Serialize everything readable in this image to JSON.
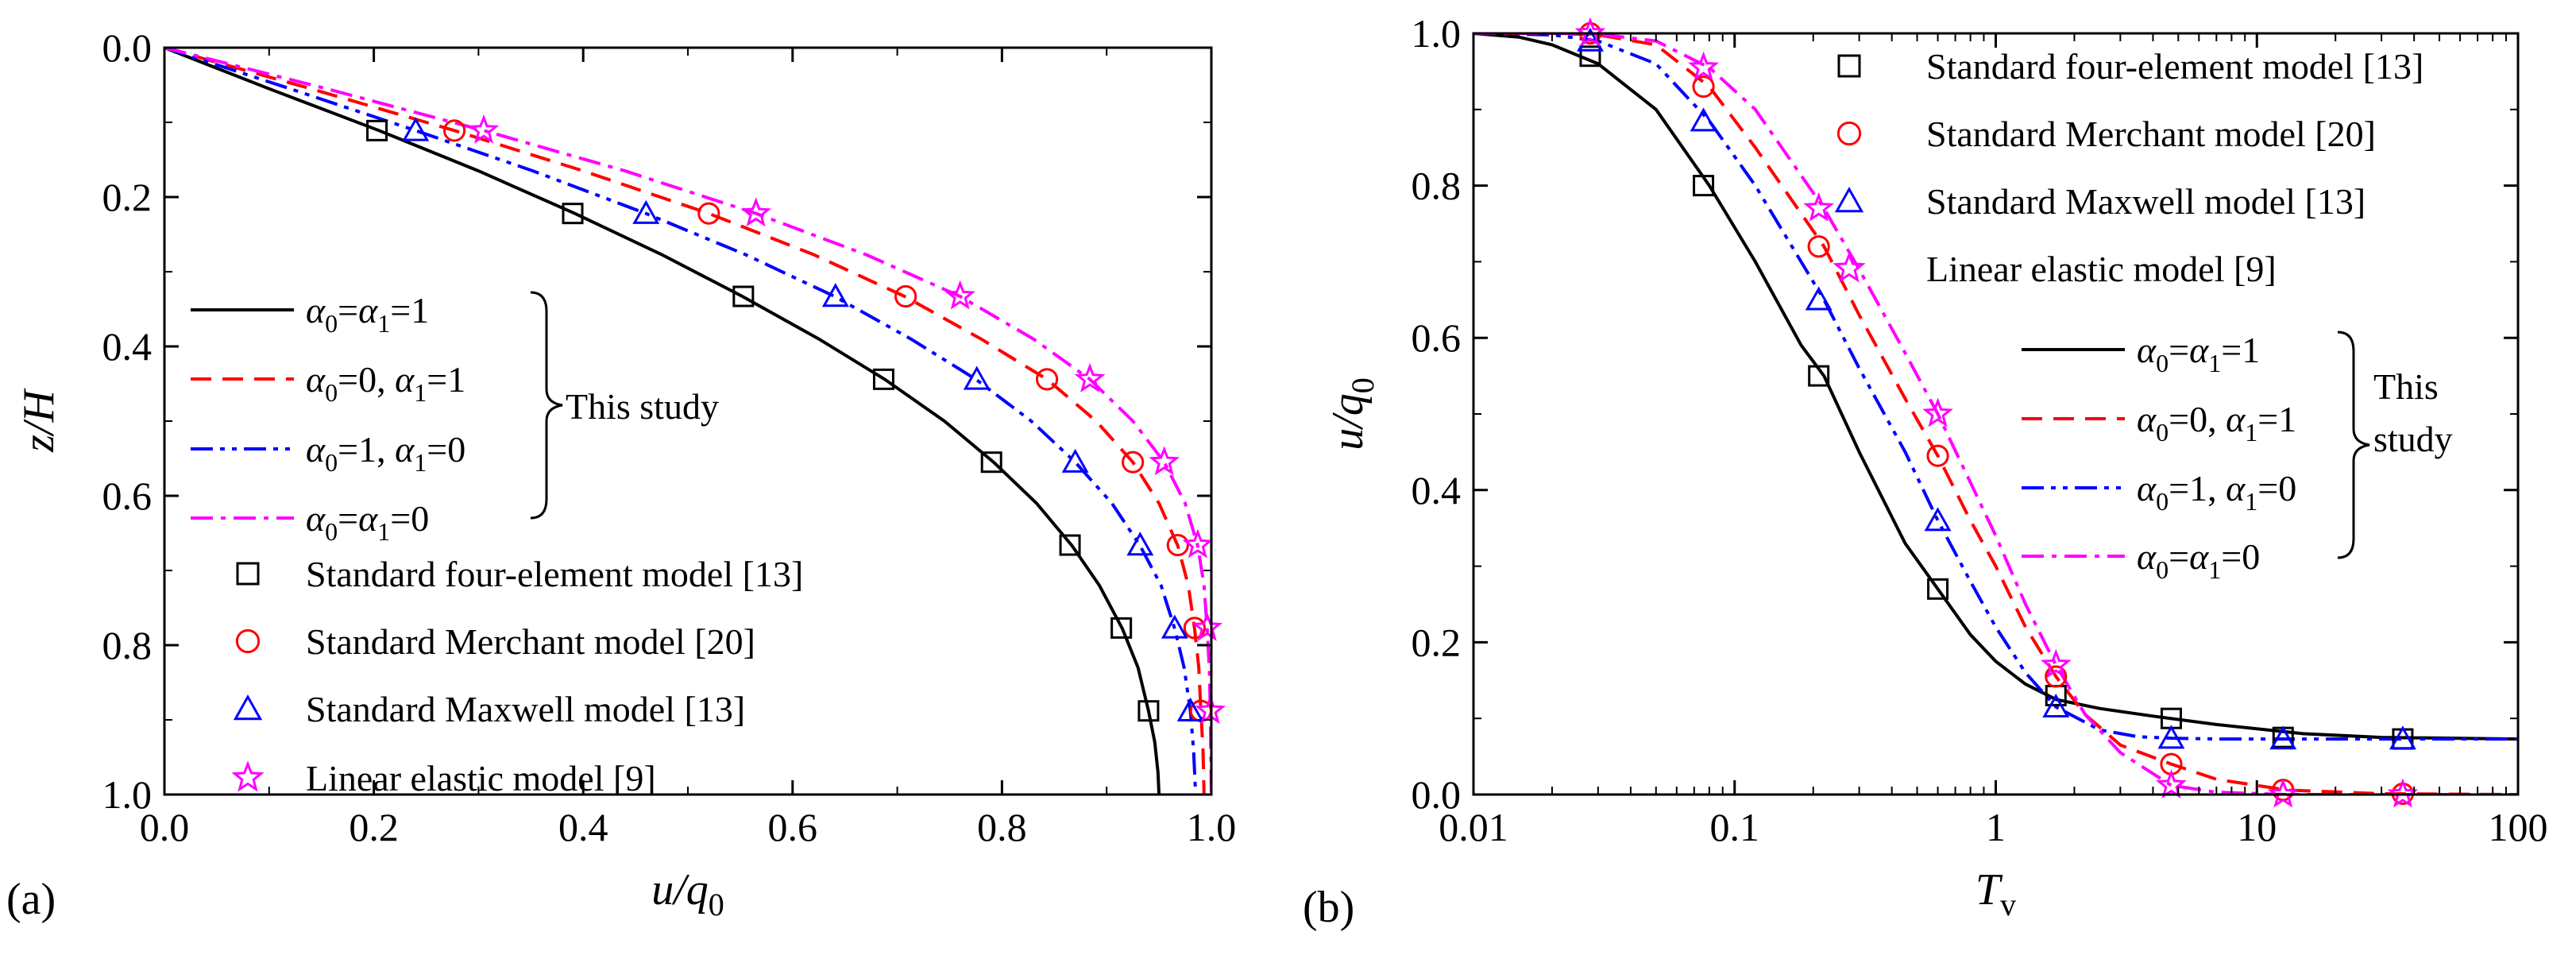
{
  "figure": {
    "panels": [
      "(a)",
      "(b)"
    ],
    "colors": {
      "black": "#000000",
      "red": "#ff0000",
      "blue": "#0000ff",
      "magenta": "#ff00ff",
      "axis": "#000000"
    }
  },
  "chart_data": [
    {
      "type": "line",
      "panel": "(a)",
      "xlabel": "u/q",
      "xlabel_sub": "0",
      "ylabel": "z/H",
      "xlim": [
        0.0,
        1.0
      ],
      "ylim": [
        0.0,
        1.0
      ],
      "y_inverted": true,
      "xticks": [
        "0.0",
        "0.2",
        "0.4",
        "0.6",
        "0.8",
        "1.0"
      ],
      "yticks": [
        "0.0",
        "0.2",
        "0.4",
        "0.6",
        "0.8",
        "1.0"
      ],
      "legend_position": "left-center",
      "group_label": "This study",
      "series": [
        {
          "name": "α0=α1=1",
          "label_parts": [
            "α",
            "0",
            "=",
            "α",
            "1",
            "=1"
          ],
          "style": "solid",
          "color": "#000000",
          "x": [
            0,
            0.1,
            0.205,
            0.3,
            0.392,
            0.475,
            0.552,
            0.625,
            0.688,
            0.745,
            0.792,
            0.833,
            0.867,
            0.893,
            0.915,
            0.93,
            0.94,
            0.946,
            0.949,
            0.95
          ],
          "y": [
            0,
            0.055,
            0.111,
            0.165,
            0.222,
            0.277,
            0.333,
            0.39,
            0.444,
            0.5,
            0.555,
            0.61,
            0.667,
            0.72,
            0.778,
            0.83,
            0.888,
            0.93,
            0.97,
            1.0
          ]
        },
        {
          "name": "α0=0, α1=1",
          "label_parts": [
            "α",
            "0",
            "=0, ",
            "α",
            "1",
            "=1"
          ],
          "style": "dashed",
          "color": "#ff0000",
          "x": [
            0,
            0.14,
            0.277,
            0.4,
            0.52,
            0.62,
            0.707,
            0.78,
            0.843,
            0.89,
            0.925,
            0.95,
            0.968,
            0.978,
            0.984,
            0.988,
            0.99,
            0.992,
            0.993
          ],
          "y": [
            0,
            0.055,
            0.111,
            0.165,
            0.222,
            0.277,
            0.333,
            0.39,
            0.444,
            0.5,
            0.555,
            0.61,
            0.667,
            0.72,
            0.778,
            0.83,
            0.888,
            0.94,
            1.0
          ]
        },
        {
          "name": "α0=1, α1=0",
          "label_parts": [
            "α",
            "0",
            "=1, ",
            "α",
            "1",
            "=0"
          ],
          "style": "dashdotdot",
          "color": "#0000ff",
          "x": [
            0,
            0.12,
            0.24,
            0.352,
            0.46,
            0.555,
            0.64,
            0.713,
            0.775,
            0.828,
            0.87,
            0.905,
            0.932,
            0.952,
            0.965,
            0.974,
            0.98,
            0.983,
            0.985
          ],
          "y": [
            0,
            0.055,
            0.111,
            0.165,
            0.222,
            0.277,
            0.333,
            0.39,
            0.444,
            0.5,
            0.555,
            0.61,
            0.667,
            0.72,
            0.778,
            0.83,
            0.888,
            0.94,
            1.0
          ]
        },
        {
          "name": "α0=α1=0",
          "label_parts": [
            "α",
            "0",
            "=",
            "α",
            "1",
            "=0"
          ],
          "style": "dashdot",
          "color": "#ff00ff",
          "x": [
            0,
            0.155,
            0.305,
            0.44,
            0.565,
            0.67,
            0.76,
            0.83,
            0.884,
            0.925,
            0.955,
            0.975,
            0.987,
            0.993,
            0.996,
            0.998,
            0.999,
            1.0
          ],
          "y": [
            0,
            0.055,
            0.111,
            0.165,
            0.222,
            0.277,
            0.333,
            0.39,
            0.444,
            0.5,
            0.555,
            0.61,
            0.667,
            0.72,
            0.778,
            0.83,
            0.888,
            1.0
          ]
        }
      ],
      "markers": [
        {
          "name": "Standard four-element model [13]",
          "symbol": "square",
          "color": "#000000",
          "x": [
            0.203,
            0.39,
            0.553,
            0.687,
            0.79,
            0.865,
            0.914,
            0.94
          ],
          "y": [
            0.111,
            0.222,
            0.333,
            0.444,
            0.555,
            0.666,
            0.777,
            0.888
          ]
        },
        {
          "name": "Standard Merchant model [20]",
          "symbol": "circle",
          "color": "#ff0000",
          "x": [
            0.277,
            0.52,
            0.708,
            0.843,
            0.925,
            0.968,
            0.984,
            0.99
          ],
          "y": [
            0.111,
            0.222,
            0.333,
            0.444,
            0.555,
            0.666,
            0.777,
            0.888
          ]
        },
        {
          "name": "Standard Maxwell  model [13]",
          "symbol": "triangle",
          "color": "#0000ff",
          "x": [
            0.24,
            0.46,
            0.641,
            0.776,
            0.87,
            0.932,
            0.965,
            0.98
          ],
          "y": [
            0.111,
            0.222,
            0.333,
            0.444,
            0.555,
            0.666,
            0.777,
            0.888
          ]
        },
        {
          "name": "Linear elastic model [9]",
          "symbol": "star",
          "color": "#ff00ff",
          "x": [
            0.305,
            0.565,
            0.76,
            0.884,
            0.955,
            0.987,
            0.996,
            0.999
          ],
          "y": [
            0.111,
            0.222,
            0.333,
            0.444,
            0.555,
            0.666,
            0.777,
            0.888
          ]
        }
      ]
    },
    {
      "type": "line",
      "panel": "(b)",
      "xlabel": "T",
      "xlabel_sub": "v",
      "ylabel": "u/q",
      "ylabel_sub": "0",
      "xscale": "log",
      "xlim": [
        0.01,
        100
      ],
      "ylim": [
        0.0,
        1.0
      ],
      "xticks": [
        "0.01",
        "0.1",
        "1",
        "10",
        "100"
      ],
      "yticks": [
        "0.0",
        "0.2",
        "0.4",
        "0.6",
        "0.8",
        "1.0"
      ],
      "legend_position": "top-right",
      "group_label": [
        "This",
        "study"
      ],
      "series": [
        {
          "name": "α0=α1=1",
          "label_parts": [
            "α",
            "0",
            "=",
            "α",
            "1",
            "=1"
          ],
          "style": "solid",
          "color": "#000000",
          "x": [
            0.01,
            0.015,
            0.02,
            0.03,
            0.05,
            0.08,
            0.12,
            0.18,
            0.22,
            0.3,
            0.45,
            0.6,
            0.8,
            1.0,
            1.3,
            1.7,
            2.5,
            4.0,
            7.0,
            15,
            30,
            100
          ],
          "y": [
            1.0,
            0.995,
            0.985,
            0.96,
            0.9,
            0.8,
            0.7,
            0.59,
            0.55,
            0.45,
            0.33,
            0.27,
            0.21,
            0.175,
            0.145,
            0.125,
            0.113,
            0.103,
            0.092,
            0.08,
            0.075,
            0.073
          ]
        },
        {
          "name": "α0=0, α1=1",
          "label_parts": [
            "α",
            "0",
            "=0, ",
            "α",
            "1",
            "=1"
          ],
          "style": "dashed",
          "color": "#ff0000",
          "x": [
            0.01,
            0.02,
            0.03,
            0.05,
            0.08,
            0.12,
            0.22,
            0.3,
            0.45,
            0.6,
            0.8,
            1.0,
            1.3,
            1.7,
            2.2,
            3.0,
            4.7,
            7.0,
            13,
            30,
            100
          ],
          "y": [
            1.0,
            1.0,
            0.998,
            0.985,
            0.93,
            0.85,
            0.72,
            0.63,
            0.52,
            0.445,
            0.36,
            0.3,
            0.22,
            0.155,
            0.105,
            0.065,
            0.04,
            0.02,
            0.006,
            0.001,
            0.0
          ]
        },
        {
          "name": "α0=1, α1=0",
          "label_parts": [
            "α",
            "0",
            "=1, ",
            "α",
            "1",
            "=0"
          ],
          "style": "dashdotdot",
          "color": "#0000ff",
          "x": [
            0.01,
            0.02,
            0.03,
            0.05,
            0.08,
            0.12,
            0.22,
            0.3,
            0.45,
            0.6,
            0.8,
            1.0,
            1.3,
            1.7,
            2.5,
            3.5,
            4.7,
            7.0,
            13,
            30,
            100
          ],
          "y": [
            1.0,
            0.998,
            0.99,
            0.96,
            0.885,
            0.8,
            0.65,
            0.56,
            0.45,
            0.36,
            0.28,
            0.22,
            0.16,
            0.115,
            0.085,
            0.076,
            0.074,
            0.073,
            0.073,
            0.073,
            0.073
          ]
        },
        {
          "name": "α0=α1=0",
          "label_parts": [
            "α",
            "0",
            "=",
            "α",
            "1",
            "=0"
          ],
          "style": "dashdot",
          "color": "#ff00ff",
          "x": [
            0.01,
            0.02,
            0.03,
            0.05,
            0.08,
            0.12,
            0.22,
            0.3,
            0.45,
            0.6,
            0.8,
            1.0,
            1.3,
            1.7,
            2.2,
            3.0,
            4.7,
            7.0,
            13,
            30,
            100
          ],
          "y": [
            1.0,
            1.0,
            0.999,
            0.99,
            0.955,
            0.9,
            0.77,
            0.69,
            0.58,
            0.5,
            0.41,
            0.34,
            0.25,
            0.17,
            0.105,
            0.055,
            0.012,
            0.003,
            0.0,
            0.0,
            0.0
          ]
        }
      ],
      "markers": [
        {
          "name": "Standard four-element model [13]",
          "symbol": "square",
          "color": "#000000",
          "x": [
            0.028,
            0.076,
            0.21,
            0.6,
            1.7,
            4.7,
            12.6,
            36.2
          ],
          "y": [
            0.97,
            0.8,
            0.55,
            0.27,
            0.13,
            0.1,
            0.075,
            0.073
          ]
        },
        {
          "name": "Standard Merchant model [20]",
          "symbol": "circle",
          "color": "#ff0000",
          "x": [
            0.028,
            0.076,
            0.21,
            0.6,
            1.7,
            4.7,
            12.6,
            36.2
          ],
          "y": [
            1.0,
            0.93,
            0.72,
            0.445,
            0.155,
            0.04,
            0.006,
            0.001
          ]
        },
        {
          "name": "Standard Maxwell  model [13]",
          "symbol": "triangle",
          "color": "#0000ff",
          "x": [
            0.028,
            0.076,
            0.21,
            0.6,
            1.7,
            4.7,
            12.6,
            36.2
          ],
          "y": [
            0.99,
            0.885,
            0.65,
            0.36,
            0.115,
            0.074,
            0.073,
            0.073
          ]
        },
        {
          "name": "Linear elastic model [9]",
          "symbol": "star",
          "color": "#ff00ff",
          "x": [
            0.028,
            0.076,
            0.21,
            0.6,
            1.7,
            4.7,
            12.6,
            36.2
          ],
          "y": [
            1.0,
            0.955,
            0.77,
            0.5,
            0.17,
            0.012,
            0.0,
            0.0
          ]
        }
      ]
    }
  ]
}
